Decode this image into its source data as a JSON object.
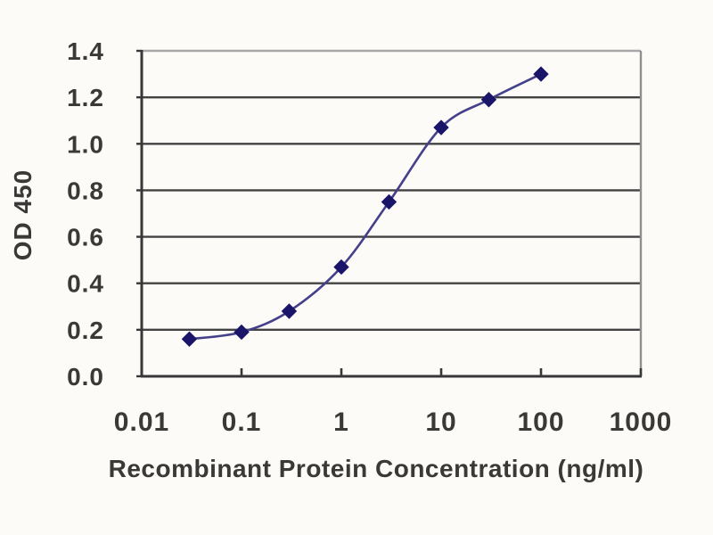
{
  "figure": {
    "kind": "ELISA standard curve plot",
    "background_color": "#fcfbf8"
  },
  "chart_data": {
    "type": "line",
    "title": "",
    "xlabel": "Recombinant Protein Concentration (ng/ml)",
    "ylabel": "OD 450",
    "x_scale": "log",
    "x": [
      0.03,
      0.1,
      0.3,
      1,
      3,
      10,
      30,
      100
    ],
    "series": [
      {
        "name": "OD 450",
        "values": [
          0.16,
          0.19,
          0.28,
          0.47,
          0.75,
          1.07,
          1.19,
          1.3
        ]
      }
    ],
    "xlim": [
      0.01,
      1000
    ],
    "ylim": [
      0,
      1.4
    ],
    "x_ticks": [
      0.01,
      0.1,
      1,
      10,
      100,
      1000
    ],
    "x_tick_labels": [
      "0.01",
      "0.1",
      "1",
      "10",
      "100",
      "1000"
    ],
    "y_ticks": [
      0,
      0.2,
      0.4,
      0.6,
      0.8,
      1.0,
      1.2,
      1.4
    ],
    "y_tick_labels": [
      "0.0",
      "0.2",
      "0.4",
      "0.6",
      "0.8",
      "1.0",
      "1.2",
      "1.4"
    ],
    "grid": "horizontal",
    "legend": "none",
    "marker": "diamond",
    "smooth_line": true,
    "colors": {
      "line": "#44418a",
      "marker": "#1a1568",
      "axis": "#383838",
      "gridline": "#424242",
      "top_border": "#a8a8a8",
      "right_border": "#8f8f8f",
      "tick_text": "#3b3937"
    }
  }
}
